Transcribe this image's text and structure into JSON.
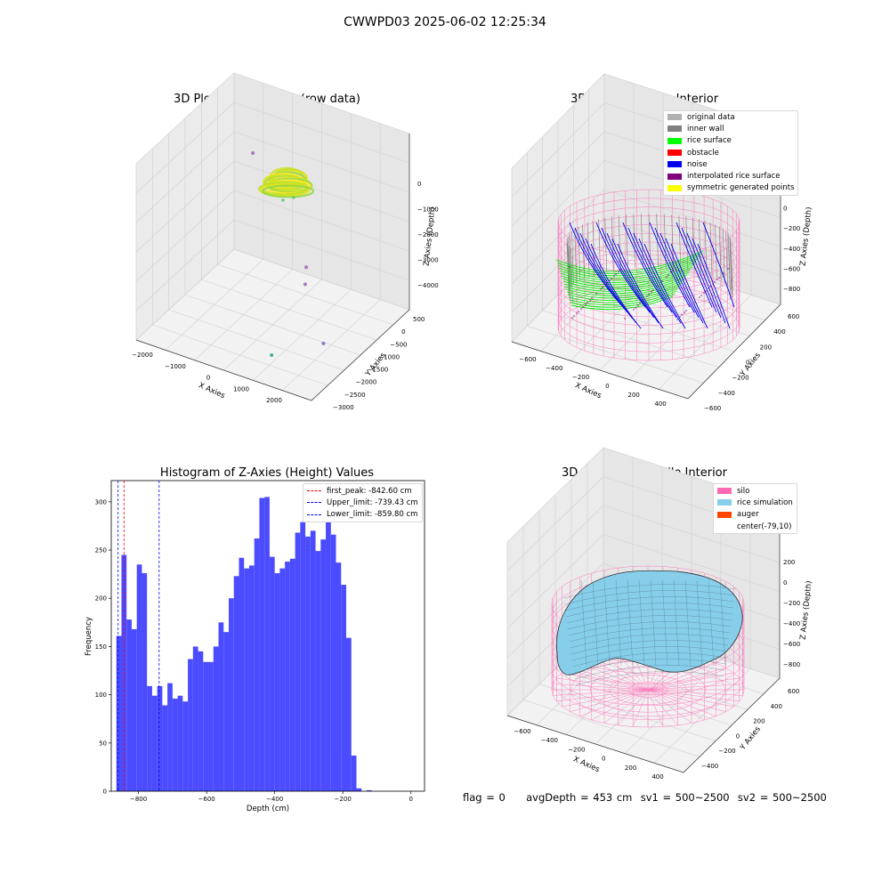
{
  "figure": {
    "suptitle": "CWWPD03 2025-06-02 12:25:34"
  },
  "raw_plot": {
    "title": "3D Plot of Silo Interior(row data)",
    "xlabel": "X Axies",
    "ylabel": "Y Axies",
    "zlabel": "Z Axies (Depth)",
    "xticks": [
      "−2000",
      "−1000",
      "0",
      "1000",
      "2000"
    ],
    "yticks": [
      "500",
      "0",
      "−500",
      "−1000",
      "−1500",
      "−2000",
      "−2500",
      "−3000"
    ],
    "zticks": [
      "0",
      "−1000",
      "−2000",
      "−3000",
      "−4000"
    ],
    "colors": {
      "cluster": "#c8e020",
      "outlier_a": "#9b59b6",
      "outlier_b": "#16a085"
    }
  },
  "classify_plot": {
    "title": "3D classify of Silo Interior",
    "xlabel": "X Axies",
    "ylabel": "Y Axies",
    "zlabel": "Z Axies (Depth)",
    "xticks": [
      "−600",
      "−400",
      "−200",
      "0",
      "200",
      "400"
    ],
    "yticks": [
      "600",
      "400",
      "200",
      "0",
      "−200",
      "−400",
      "−600"
    ],
    "zticks": [
      "200",
      "0",
      "−200",
      "−400",
      "−600",
      "−800"
    ],
    "legend": [
      {
        "label": "original data",
        "color": "#b0b0b0"
      },
      {
        "label": "inner wall",
        "color": "#808080"
      },
      {
        "label": "rice surface",
        "color": "#00ff00"
      },
      {
        "label": "obstacle",
        "color": "#ff0000"
      },
      {
        "label": "noise",
        "color": "#0000ee"
      },
      {
        "label": "interpolated rice surface",
        "color": "#800080"
      },
      {
        "label": "symmetric generated points",
        "color": "#ffff00"
      }
    ],
    "colors": {
      "silo": "#ff69b4"
    }
  },
  "histogram": {
    "title": "Histogram of Z-Axies (Height) Values",
    "xlabel": "Depth (cm)",
    "ylabel": "Frequency",
    "xticks": [
      "−800",
      "−600",
      "−400",
      "−200",
      "0"
    ],
    "yticks": [
      "0",
      "50",
      "100",
      "150",
      "200",
      "250",
      "300"
    ],
    "legend": [
      {
        "label": "first_peak: -842.60 cm",
        "color": "#ff0000"
      },
      {
        "label": "Upper_limit: -739.43 cm",
        "color": "#0000ff"
      },
      {
        "label": "Lower_limit: -859.80 cm",
        "color": "#0000ff"
      }
    ],
    "bar_color": "#4b4bff"
  },
  "simulation_plot": {
    "title": "3D simulation of Silo Interior",
    "xlabel": "X Axies",
    "ylabel": "Y Axies",
    "zlabel": "Z Axies (Depth)",
    "xticks": [
      "−600",
      "−400",
      "−200",
      "0",
      "200",
      "400"
    ],
    "yticks": [
      "600",
      "400",
      "200",
      "0",
      "−200",
      "−400"
    ],
    "zticks": [
      "200",
      "0",
      "−200",
      "−400",
      "−600",
      "−800"
    ],
    "legend": [
      {
        "label": "silo",
        "color": "#ff69b4"
      },
      {
        "label": "rice simulation",
        "color": "#87ceeb"
      },
      {
        "label": "auger",
        "color": "#ff4500"
      },
      {
        "label": "center(-79,10)",
        "color": ""
      }
    ]
  },
  "footer": {
    "text": "flag = 0     avgDepth = 453 cm  sv1 = 500~2500  sv2 = 500~2500"
  },
  "chart_data": [
    {
      "type": "scatter",
      "title": "3D Plot of Silo Interior(row data)",
      "xlabel": "X Axies",
      "ylabel": "Y Axies",
      "zlabel": "Z Axies (Depth)",
      "xlim": [
        -2300,
        2800
      ],
      "ylim": [
        -3000,
        700
      ],
      "zlim": [
        -4500,
        100
      ],
      "points": [
        {
          "x": -1600,
          "y": 500,
          "z": -2700,
          "color": "#9b59b6"
        },
        {
          "x": 800,
          "y": -600,
          "z": -3900,
          "color": "#9b59b6"
        },
        {
          "x": 1000,
          "y": -900,
          "z": -4000,
          "color": "#9b59b6"
        },
        {
          "x": 2300,
          "y": -1900,
          "z": -4200,
          "color": "#6a5acd"
        },
        {
          "x": 1100,
          "y": -2300,
          "z": -4500,
          "color": "#16a085"
        }
      ],
      "grid": true
    },
    {
      "type": "scatter",
      "title": "3D classify of Silo Interior",
      "series": [
        {
          "name": "original data"
        },
        {
          "name": "inner wall"
        },
        {
          "name": "rice surface"
        },
        {
          "name": "obstacle"
        },
        {
          "name": "noise"
        },
        {
          "name": "interpolated rice surface"
        },
        {
          "name": "symmetric generated points"
        }
      ],
      "xlim": [
        -700,
        500
      ],
      "ylim": [
        -600,
        600
      ],
      "zlim": [
        -900,
        300
      ],
      "legend_position": "top-right",
      "grid": true
    },
    {
      "type": "bar",
      "title": "Histogram of Z-Axies (Height) Values",
      "xlabel": "Depth (cm)",
      "ylabel": "Frequency",
      "bin_start": -865,
      "bin_width": 15,
      "values": [
        161,
        245,
        178,
        168,
        235,
        226,
        109,
        99,
        109,
        89,
        112,
        96,
        99,
        93,
        137,
        150,
        145,
        134,
        134,
        150,
        175,
        165,
        200,
        223,
        242,
        231,
        234,
        262,
        304,
        305,
        243,
        226,
        231,
        238,
        241,
        268,
        279,
        264,
        270,
        249,
        261,
        281,
        266,
        237,
        214,
        159,
        37,
        3,
        0,
        1
      ],
      "xlim": [
        -880,
        40
      ],
      "ylim": [
        0,
        322
      ],
      "vlines": [
        {
          "x": -842.6,
          "label": "first_peak: -842.60 cm"
        },
        {
          "x": -739.43,
          "label": "Upper_limit: -739.43 cm"
        },
        {
          "x": -859.8,
          "label": "Lower_limit: -859.80 cm"
        }
      ],
      "legend_position": "top-right"
    },
    {
      "type": "area",
      "title": "3D simulation of Silo Interior",
      "series": [
        {
          "name": "silo"
        },
        {
          "name": "rice simulation"
        },
        {
          "name": "auger"
        }
      ],
      "center": [
        -79,
        10
      ],
      "xlim": [
        -700,
        500
      ],
      "ylim": [
        -500,
        600
      ],
      "zlim": [
        -900,
        300
      ],
      "legend_position": "top-right"
    }
  ]
}
